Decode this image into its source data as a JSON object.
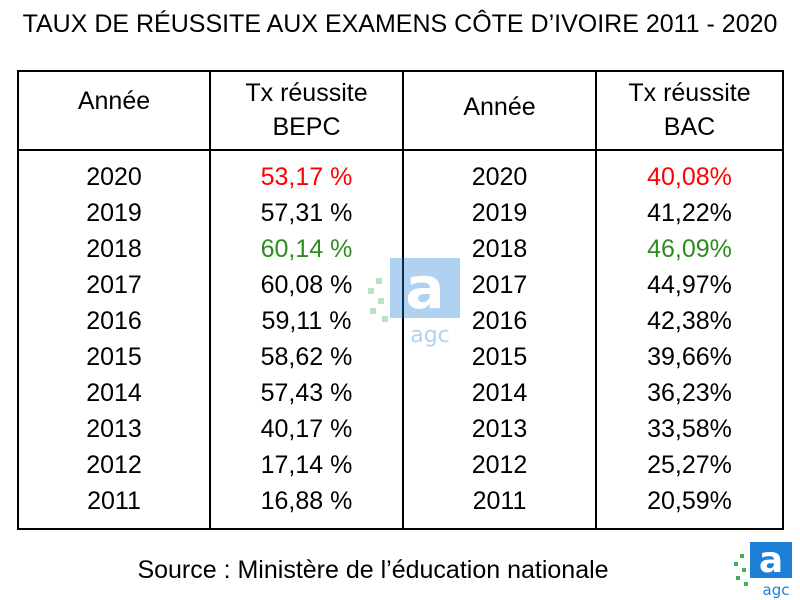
{
  "title": "TAUX DE RÉUSSITE AUX EXAMENS CÔTE D’IVOIRE 2011 - 2020",
  "source": "Source : Ministère de l’éducation nationale",
  "logo_text": "agc",
  "colors": {
    "highlight_min": "#ff0000",
    "highlight_max": "#2e8b1f",
    "logo_blue": "#1e7fd6",
    "logo_green": "#3cb054"
  },
  "chart_data": {
    "type": "table",
    "title": "TAUX DE RÉUSSITE AUX EXAMENS CÔTE D’IVOIRE 2011 - 2020",
    "headers": {
      "annee_bepc": "Année",
      "bepc_line1": "Tx réussite",
      "bepc_line2": "BEPC",
      "annee_bac": "Année",
      "bac_line1": "Tx réussite",
      "bac_line2": "BAC"
    },
    "rows": [
      {
        "year_bepc": "2020",
        "bepc": "53,17 %",
        "year_bac": "2020",
        "bac": "40,08%",
        "bepc_color": "red",
        "bac_color": "red"
      },
      {
        "year_bepc": "2019",
        "bepc": "57,31 %",
        "year_bac": "2019",
        "bac": "41,22%"
      },
      {
        "year_bepc": "2018",
        "bepc": "60,14 %",
        "year_bac": "2018",
        "bac": "46,09%",
        "bepc_color": "green",
        "bac_color": "green"
      },
      {
        "year_bepc": "2017",
        "bepc": "60,08 %",
        "year_bac": "2017",
        "bac": "44,97%"
      },
      {
        "year_bepc": "2016",
        "bepc": "59,11 %",
        "year_bac": "2016",
        "bac": "42,38%"
      },
      {
        "year_bepc": "2015",
        "bepc": "58,62 %",
        "year_bac": "2015",
        "bac": "39,66%"
      },
      {
        "year_bepc": "2014",
        "bepc": "57,43 %",
        "year_bac": "2014",
        "bac": "36,23%"
      },
      {
        "year_bepc": "2013",
        "bepc": "40,17 %",
        "year_bac": "2013",
        "bac": "33,58%"
      },
      {
        "year_bepc": "2012",
        "bepc": "17,14 %",
        "year_bac": "2012",
        "bac": "25,27%"
      },
      {
        "year_bepc": "2011",
        "bepc": "16,88 %",
        "year_bac": "2011",
        "bac": "20,59%"
      }
    ]
  }
}
